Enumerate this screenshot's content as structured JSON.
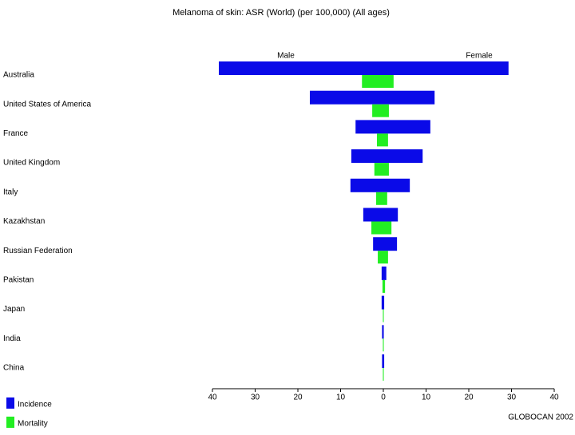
{
  "chart_data": {
    "type": "pyramid",
    "title": "Melanoma of skin: ASR (World) (per 100,000) (All ages)",
    "side_labels": [
      "Male",
      "Female"
    ],
    "categories": [
      "Australia",
      "United States of America",
      "France",
      "United Kingdom",
      "Italy",
      "Kazakhstan",
      "Russian Federation",
      "Pakistan",
      "Japan",
      "India",
      "China"
    ],
    "series": [
      {
        "name": "Incidence",
        "color": "#0a0ae8",
        "male": [
          -38.5,
          -17.2,
          -6.5,
          -7.5,
          -7.7,
          -4.7,
          -2.4,
          -0.4,
          -0.4,
          -0.3,
          -0.3
        ],
        "female": [
          29.3,
          12.0,
          11.0,
          9.2,
          6.2,
          3.4,
          3.2,
          0.7,
          0.2,
          0.1,
          0.2
        ]
      },
      {
        "name": "Mortality",
        "color": "#22ee22",
        "male": [
          -5.0,
          -2.6,
          -1.5,
          -2.1,
          -1.7,
          -2.8,
          -1.3,
          -0.2,
          -0.1,
          -0.1,
          -0.1
        ],
        "female": [
          2.4,
          1.3,
          1.1,
          1.3,
          0.9,
          1.9,
          1.1,
          0.4,
          0.1,
          0.1,
          0.1
        ]
      }
    ],
    "xlim": [
      -40,
      40
    ],
    "xticks": [
      {
        "value": -40,
        "label": "40"
      },
      {
        "value": -30,
        "label": "30"
      },
      {
        "value": -20,
        "label": "20"
      },
      {
        "value": -10,
        "label": "10"
      },
      0,
      10,
      20,
      30,
      40
    ],
    "source": "GLOBOCAN 2002"
  }
}
